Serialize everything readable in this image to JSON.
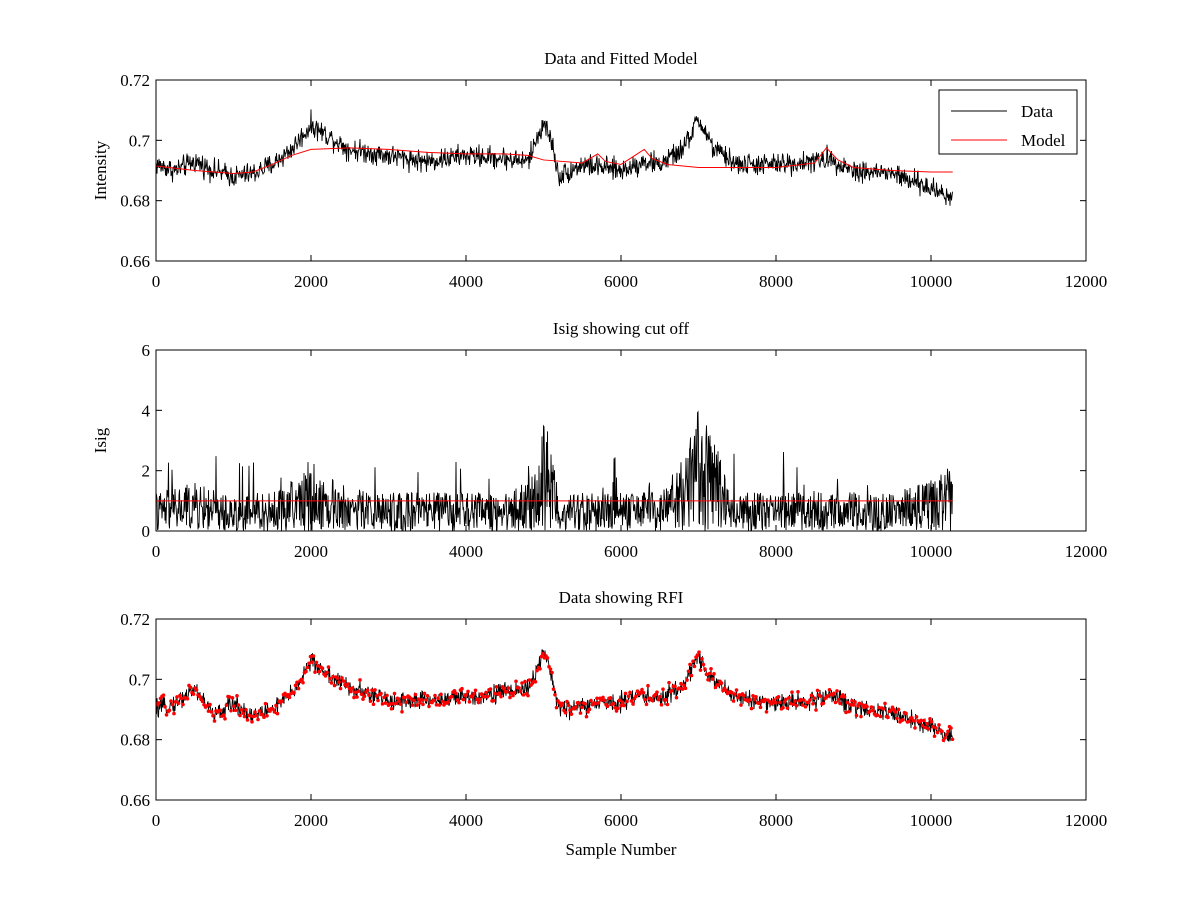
{
  "chart_data": [
    {
      "type": "line",
      "title": "Data and Fitted Model",
      "xlabel": "",
      "ylabel": "Intensity",
      "xlim": [
        0,
        12000
      ],
      "ylim": [
        0.66,
        0.72
      ],
      "xticks": [
        0,
        2000,
        4000,
        6000,
        8000,
        10000,
        12000
      ],
      "xtick_labels": [
        "0",
        "2000",
        "4000",
        "6000",
        "8000",
        "10000",
        "12000"
      ],
      "yticks": [
        0.66,
        0.68,
        0.7,
        0.72
      ],
      "ytick_labels": [
        "0.66",
        "0.68",
        "0.7",
        "0.72"
      ],
      "grid": false,
      "legend_position": "top-right",
      "series": [
        {
          "name": "Data",
          "color": "#000000",
          "x": [
            0,
            250,
            500,
            750,
            1000,
            1250,
            1500,
            1750,
            2000,
            2250,
            2500,
            2750,
            3000,
            3500,
            4000,
            4500,
            4800,
            5000,
            5100,
            5200,
            5500,
            6000,
            6300,
            6500,
            6800,
            7000,
            7200,
            7500,
            8000,
            8500,
            8700,
            9000,
            9500,
            10000,
            10280
          ],
          "values": [
            0.692,
            0.69,
            0.693,
            0.69,
            0.688,
            0.689,
            0.692,
            0.697,
            0.705,
            0.701,
            0.697,
            0.696,
            0.695,
            0.693,
            0.695,
            0.694,
            0.693,
            0.706,
            0.7,
            0.688,
            0.692,
            0.69,
            0.693,
            0.692,
            0.697,
            0.707,
            0.697,
            0.692,
            0.692,
            0.693,
            0.694,
            0.69,
            0.689,
            0.684,
            0.681
          ],
          "noise_amplitude": 0.006
        },
        {
          "name": "Model",
          "color": "#ff0000",
          "x": [
            0,
            500,
            1000,
            1250,
            1500,
            1750,
            2000,
            2500,
            3000,
            3500,
            4000,
            4500,
            4800,
            5000,
            5500,
            5700,
            5800,
            6000,
            6300,
            6400,
            6600,
            7000,
            7500,
            8000,
            8500,
            8650,
            8800,
            9000,
            9500,
            10000,
            10280
          ],
          "values": [
            0.6915,
            0.69,
            0.689,
            0.6895,
            0.692,
            0.695,
            0.697,
            0.6975,
            0.697,
            0.696,
            0.6955,
            0.6955,
            0.695,
            0.6935,
            0.6925,
            0.6955,
            0.693,
            0.692,
            0.697,
            0.694,
            0.692,
            0.691,
            0.691,
            0.691,
            0.6925,
            0.6975,
            0.6935,
            0.691,
            0.69,
            0.6895,
            0.6895
          ]
        }
      ]
    },
    {
      "type": "line",
      "title": "Isig showing cut off",
      "xlabel": "",
      "ylabel": "Isig",
      "xlim": [
        0,
        12000
      ],
      "ylim": [
        0,
        6
      ],
      "xticks": [
        0,
        2000,
        4000,
        6000,
        8000,
        10000,
        12000
      ],
      "xtick_labels": [
        "0",
        "2000",
        "4000",
        "6000",
        "8000",
        "10000",
        "12000"
      ],
      "yticks": [
        0,
        2,
        4,
        6
      ],
      "ytick_labels": [
        "0",
        "2",
        "4",
        "6"
      ],
      "grid": false,
      "series": [
        {
          "color": "#000000",
          "x": [
            0,
            500,
            1000,
            1500,
            1900,
            2000,
            2100,
            2500,
            3000,
            3500,
            4000,
            4500,
            4900,
            5000,
            5100,
            5200,
            5500,
            6000,
            6500,
            6800,
            7000,
            7200,
            7400,
            8000,
            8500,
            9000,
            9500,
            10000,
            10280
          ],
          "values": [
            0.8,
            1.0,
            0.7,
            0.8,
            1.2,
            1.6,
            1.2,
            0.9,
            0.8,
            0.8,
            0.8,
            0.8,
            1.2,
            2.2,
            2.0,
            0.8,
            0.8,
            0.8,
            0.8,
            1.5,
            2.8,
            2.0,
            0.8,
            0.8,
            0.8,
            0.8,
            0.8,
            1.1,
            1.4
          ],
          "noise_amplitude": 1.2
        },
        {
          "color": "#ff0000",
          "x": [
            0,
            10280
          ],
          "values": [
            1.0,
            1.0
          ]
        }
      ]
    },
    {
      "type": "line",
      "title": "Data showing RFI",
      "xlabel": "Sample Number",
      "ylabel": "",
      "xlim": [
        0,
        12000
      ],
      "ylim": [
        0.66,
        0.72
      ],
      "xticks": [
        0,
        2000,
        4000,
        6000,
        8000,
        10000,
        12000
      ],
      "xtick_labels": [
        "0",
        "2000",
        "4000",
        "6000",
        "8000",
        "10000",
        "12000"
      ],
      "yticks": [
        0.66,
        0.68,
        0.7,
        0.72
      ],
      "ytick_labels": [
        "0.66",
        "0.68",
        "0.7",
        "0.72"
      ],
      "grid": false,
      "series": [
        {
          "color": "#000000",
          "marker_color": "#ff0000",
          "marker": "dot",
          "x": [
            0,
            250,
            500,
            750,
            1000,
            1250,
            1500,
            1750,
            2000,
            2250,
            2500,
            2750,
            3000,
            3500,
            4000,
            4500,
            4800,
            5000,
            5100,
            5200,
            5500,
            6000,
            6300,
            6500,
            6800,
            7000,
            7200,
            7500,
            8000,
            8500,
            8700,
            9000,
            9500,
            10000,
            10280
          ],
          "values": [
            0.69,
            0.692,
            0.697,
            0.688,
            0.692,
            0.688,
            0.69,
            0.695,
            0.706,
            0.701,
            0.697,
            0.695,
            0.693,
            0.693,
            0.694,
            0.696,
            0.697,
            0.708,
            0.702,
            0.69,
            0.691,
            0.693,
            0.695,
            0.693,
            0.698,
            0.708,
            0.699,
            0.694,
            0.692,
            0.693,
            0.695,
            0.691,
            0.689,
            0.684,
            0.681
          ],
          "noise_amplitude": 0.005
        }
      ]
    }
  ]
}
